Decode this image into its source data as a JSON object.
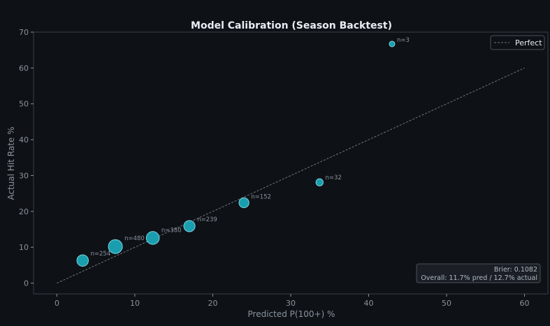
{
  "chart_data": {
    "type": "scatter",
    "title": "Model Calibration (Season Backtest)",
    "xlabel": "Predicted P(100+) %",
    "ylabel": "Actual Hit Rate %",
    "xlim": [
      -3,
      63
    ],
    "ylim": [
      -3,
      70
    ],
    "xticks": [
      0,
      10,
      20,
      30,
      40,
      50,
      60
    ],
    "yticks": [
      0,
      10,
      20,
      30,
      40,
      50,
      60,
      70
    ],
    "grid": false,
    "reference_line": {
      "name": "Perfect",
      "x": [
        0,
        60
      ],
      "y": [
        0,
        60
      ],
      "style": "dashed"
    },
    "legend": {
      "position": "top-right",
      "entries": [
        "Perfect"
      ]
    },
    "points": [
      {
        "x": 3.3,
        "y": 6.3,
        "n": 254,
        "label": "n=254"
      },
      {
        "x": 7.5,
        "y": 10.2,
        "n": 480,
        "label": "n=480"
      },
      {
        "x": 12.3,
        "y": 12.6,
        "n": 380,
        "label": "n=380"
      },
      {
        "x": 17.0,
        "y": 15.9,
        "n": 239,
        "label": "n=239"
      },
      {
        "x": 24.0,
        "y": 22.4,
        "n": 152,
        "label": "n=152"
      },
      {
        "x": 33.7,
        "y": 28.1,
        "n": 32,
        "label": "n=32"
      },
      {
        "x": 43.0,
        "y": 66.7,
        "n": 3,
        "label": "n=3"
      }
    ],
    "annotation": {
      "brier": "Brier: 0.1082",
      "overall": "Overall: 11.7% pred / 12.7% actual"
    },
    "colors": {
      "background": "#0e1116",
      "bubble_fill": "#1aa6b7",
      "bubble_edge": "#7fd3dd",
      "reference": "#6e7681",
      "axis": "#3a4048",
      "text": "#8b949e"
    }
  }
}
